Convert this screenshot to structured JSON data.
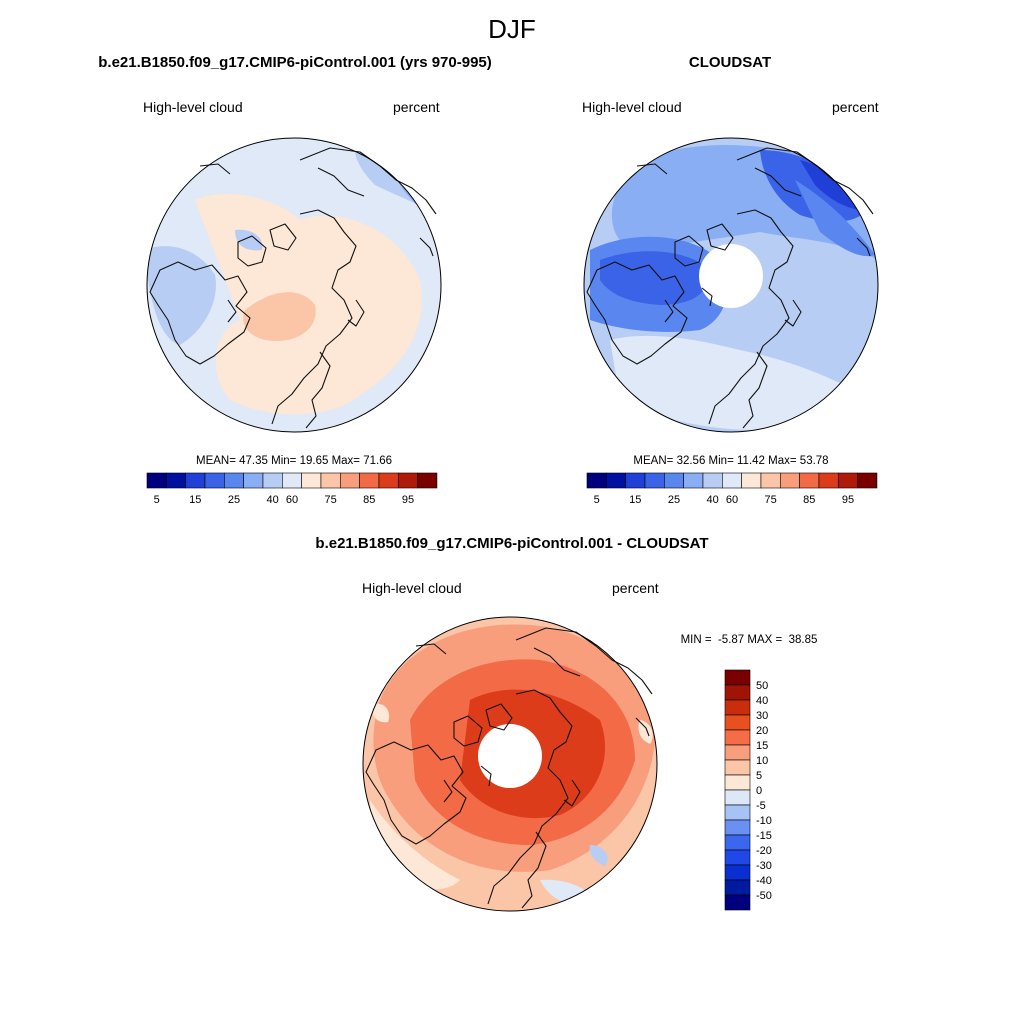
{
  "page_title": "DJF",
  "colors": {
    "palette_15": [
      "#00007f",
      "#0010a0",
      "#1f3fd6",
      "#3a63e8",
      "#5a86f0",
      "#8aaef4",
      "#b8cdf4",
      "#dfe9f7",
      "#fde7d6",
      "#fbc5a8",
      "#f89e7c",
      "#f26a46",
      "#dd3c1a",
      "#b01a08",
      "#7a0000"
    ],
    "palette_diff": [
      "#00007f",
      "#001aa0",
      "#0a2fd0",
      "#1f48e6",
      "#3a67ee",
      "#6a90f2",
      "#a7c2f4",
      "#dce8f7",
      "#fde7d6",
      "#fbc5a8",
      "#f89e7c",
      "#f46d47",
      "#e8501f",
      "#c92e0c",
      "#a01404",
      "#7a0000"
    ]
  },
  "chart_data": [
    {
      "type": "polar-contour",
      "title": "b.e21.B1850.f09_g17.CMIP6-piControl.001 (yrs 970-995)",
      "left_label": "High-level cloud",
      "right_label": "percent",
      "stats": {
        "mean_label": "MEAN=",
        "mean": "47.35",
        "min_label": "Min=",
        "min": "19.65",
        "max_label": "Max=",
        "max": "71.66"
      },
      "colorbar_ticks": [
        "5",
        "15",
        "25",
        "40",
        "60",
        "75",
        "85",
        "95"
      ],
      "dominant_band_index": 7
    },
    {
      "type": "polar-contour",
      "title": "CLOUDSAT",
      "left_label": "High-level cloud",
      "right_label": "percent",
      "stats": {
        "mean_label": "MEAN=",
        "mean": "32.56",
        "min_label": "Min=",
        "min": "11.42",
        "max_label": "Max=",
        "max": "53.78"
      },
      "colorbar_ticks": [
        "5",
        "15",
        "25",
        "40",
        "60",
        "75",
        "85",
        "95"
      ],
      "dominant_band_index": 5,
      "polar_gap": true
    },
    {
      "type": "polar-contour",
      "title": "b.e21.B1850.f09_g17.CMIP6-piControl.001 - CLOUDSAT",
      "left_label": "High-level cloud",
      "right_label": "percent",
      "stats_line": "MIN =  -5.87 MAX =  38.85",
      "colorbar_ticks": [
        "50",
        "40",
        "30",
        "20",
        "15",
        "10",
        "5",
        "0",
        "-5",
        "-10",
        "-15",
        "-20",
        "-30",
        "-40",
        "-50"
      ],
      "polar_gap": true
    }
  ]
}
